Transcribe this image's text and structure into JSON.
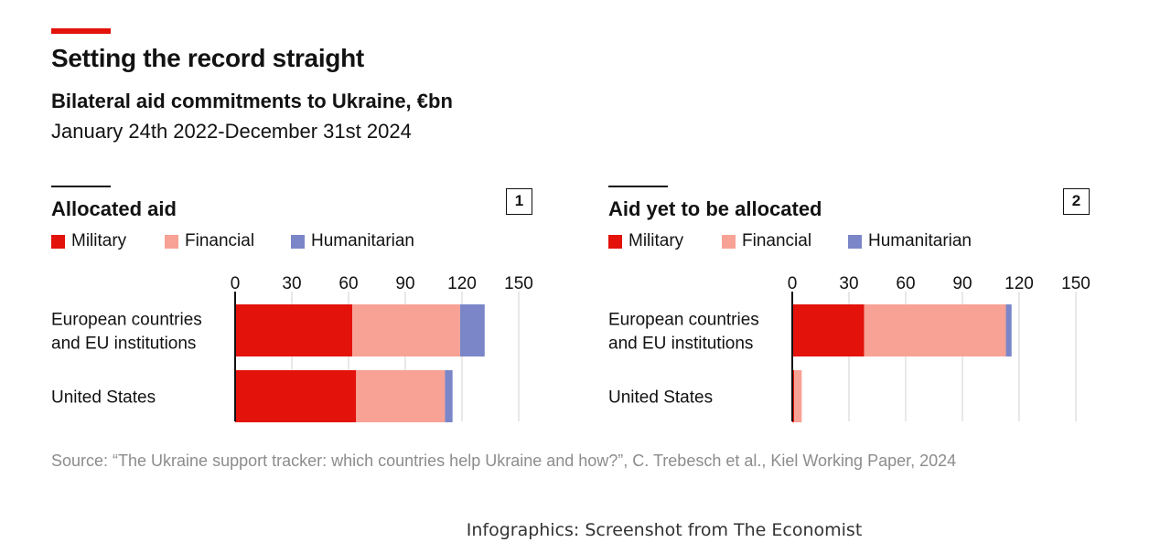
{
  "header": {
    "title": "Setting the record straight",
    "subtitle": "Bilateral aid commitments to Ukraine, €bn",
    "dates": "January 24th 2022-December 31st 2024"
  },
  "colors": {
    "accent": "#e3120b",
    "military": "#e3120b",
    "financial": "#f7a295",
    "humanitarian": "#7b86c9",
    "grid": "#d9d9d9"
  },
  "legend": [
    "Military",
    "Financial",
    "Humanitarian"
  ],
  "chart_data": [
    {
      "type": "bar",
      "orientation": "horizontal",
      "stacked": true,
      "title": "Allocated aid",
      "panel_number": "1",
      "categories": [
        [
          "European countries",
          "and EU institutions"
        ],
        [
          "United States"
        ]
      ],
      "xlim": [
        0,
        150
      ],
      "xticks": [
        "0",
        "30",
        "60",
        "90",
        "120",
        "150"
      ],
      "series": [
        {
          "name": "Military",
          "values": [
            62,
            64
          ]
        },
        {
          "name": "Financial",
          "values": [
            57,
            47
          ]
        },
        {
          "name": "Humanitarian",
          "values": [
            13,
            4
          ]
        }
      ]
    },
    {
      "type": "bar",
      "orientation": "horizontal",
      "stacked": true,
      "title": "Aid yet to be allocated",
      "panel_number": "2",
      "categories": [
        [
          "European countries",
          "and EU institutions"
        ],
        [
          "United States"
        ]
      ],
      "xlim": [
        0,
        150
      ],
      "xticks": [
        "0",
        "30",
        "60",
        "90",
        "120",
        "150"
      ],
      "series": [
        {
          "name": "Military",
          "values": [
            38,
            1
          ]
        },
        {
          "name": "Financial",
          "values": [
            75,
            4
          ]
        },
        {
          "name": "Humanitarian",
          "values": [
            3,
            0
          ]
        }
      ]
    }
  ],
  "footer": {
    "source": "Source: “The Ukraine support tracker: which countries help Ukraine and how?”, C. Trebesch et al., Kiel Working Paper, 2024",
    "caption": "Infographics: Screenshot from The Economist"
  }
}
